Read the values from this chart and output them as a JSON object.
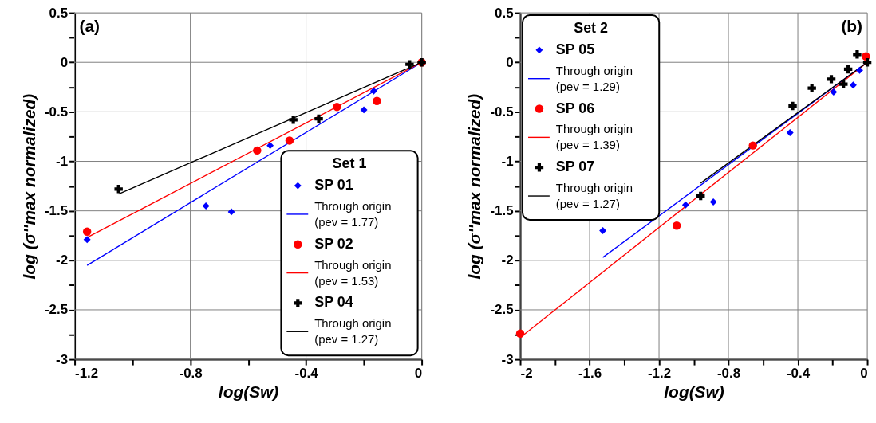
{
  "chart_data": [
    {
      "type": "scatter",
      "xlabel": "log(Sw)",
      "ylabel": "log (σ''max normalized)",
      "legend_title": "Set 1",
      "annotations": [
        "(a)"
      ],
      "grid": true,
      "legend": "bottom right",
      "xlim": [
        -1.2,
        0
      ],
      "xticks": [
        -1.2,
        {
          "value": -1.0,
          "label": null
        },
        -0.8,
        {
          "value": -0.6,
          "label": null
        },
        -0.4,
        {
          "value": -0.2,
          "label": null
        },
        0
      ],
      "ylim": [
        -3,
        0.5
      ],
      "yticks": [
        -3,
        {
          "value": -2.75,
          "label": null
        },
        -2.5,
        {
          "value": -2.25,
          "label": null
        },
        -2,
        {
          "value": -1.75,
          "label": null
        },
        -1.5,
        {
          "value": -1.25,
          "label": null
        },
        -1,
        {
          "value": -0.75,
          "label": null
        },
        -0.5,
        {
          "value": -0.25,
          "label": null
        },
        0,
        {
          "value": 0.25,
          "label": null
        },
        0.5
      ],
      "series": [
        {
          "name": "SP 01",
          "marker": "diamond",
          "color": "#0000ff",
          "x": [
            -1.157,
            -0.746,
            -0.658,
            -0.524,
            -0.2,
            -0.166
          ],
          "values": [
            -1.79,
            -1.45,
            -1.51,
            -0.84,
            -0.48,
            -0.29
          ]
        },
        {
          "name": "Through origin (pev = 1.77)",
          "type": "line",
          "color": "#0000ff",
          "x": [
            -1.157,
            0
          ],
          "values": [
            -2.05,
            0
          ]
        },
        {
          "name": "SP 02",
          "marker": "circle",
          "color": "#ff0000",
          "x": [
            -1.157,
            -0.569,
            -0.457,
            -0.293,
            -0.155,
            0
          ],
          "values": [
            -1.71,
            -0.89,
            -0.79,
            -0.45,
            -0.39,
            0
          ]
        },
        {
          "name": "Through origin (pev = 1.53)",
          "type": "line",
          "color": "#ff0000",
          "x": [
            -1.157,
            0
          ],
          "values": [
            -1.77,
            0
          ]
        },
        {
          "name": "SP 04",
          "marker": "cross",
          "color": "#000000",
          "x": [
            -1.048,
            -0.444,
            -0.356,
            -0.042,
            0
          ],
          "values": [
            -1.28,
            -0.58,
            -0.57,
            -0.02,
            0
          ]
        },
        {
          "name": "Through origin (pev = 1.27)",
          "type": "line",
          "color": "#000000",
          "x": [
            -1.048,
            0
          ],
          "values": [
            -1.33,
            0
          ]
        }
      ]
    },
    {
      "type": "scatter",
      "xlabel": "log(Sw)",
      "ylabel": "log (σ''max normalized)",
      "legend_title": "Set 2",
      "annotations": [
        "(b)"
      ],
      "grid": true,
      "legend": "top left",
      "xlim": [
        -2,
        0
      ],
      "xticks": [
        -2,
        {
          "value": -1.8,
          "label": null
        },
        -1.6,
        {
          "value": -1.4,
          "label": null
        },
        -1.2,
        {
          "value": -1.0,
          "label": null
        },
        -0.8,
        {
          "value": -0.6,
          "label": null
        },
        -0.4,
        {
          "value": -0.2,
          "label": null
        },
        0
      ],
      "ylim": [
        -3,
        0.5
      ],
      "yticks": [
        -3,
        {
          "value": -2.75,
          "label": null
        },
        -2.5,
        {
          "value": -2.25,
          "label": null
        },
        -2,
        {
          "value": -1.75,
          "label": null
        },
        -1.5,
        {
          "value": -1.25,
          "label": null
        },
        -1,
        {
          "value": -0.75,
          "label": null
        },
        -0.5,
        {
          "value": -0.25,
          "label": null
        },
        0,
        {
          "value": 0.25,
          "label": null
        },
        0.5
      ],
      "series": [
        {
          "name": "SP 05",
          "marker": "diamond",
          "color": "#0000ff",
          "x": [
            -1.524,
            -1.047,
            -0.887,
            -0.445,
            -0.194,
            -0.081,
            -0.044
          ],
          "values": [
            -1.7,
            -1.44,
            -1.41,
            -0.71,
            -0.3,
            -0.23,
            -0.08
          ]
        },
        {
          "name": "Through origin (pev = 1.29)",
          "type": "line",
          "color": "#0000ff",
          "x": [
            -1.524,
            0
          ],
          "values": [
            -1.97,
            0
          ]
        },
        {
          "name": "SP 06",
          "marker": "circle",
          "color": "#ff0000",
          "x": [
            -2,
            -1.098,
            -0.659,
            -0.008
          ],
          "values": [
            -2.74,
            -1.65,
            -0.84,
            0.06
          ]
        },
        {
          "name": "Through origin (pev = 1.39)",
          "type": "line",
          "color": "#ff0000",
          "x": [
            -2,
            0
          ],
          "values": [
            -2.78,
            0
          ]
        },
        {
          "name": "SP 07",
          "marker": "cross",
          "color": "#000000",
          "x": [
            -0.96,
            -0.43,
            -0.319,
            -0.207,
            -0.137,
            -0.11,
            -0.058,
            0
          ],
          "values": [
            -1.35,
            -0.44,
            -0.26,
            -0.17,
            -0.22,
            -0.07,
            0.08,
            0
          ]
        },
        {
          "name": "Through origin (pev = 1.27)",
          "type": "line",
          "color": "#000000",
          "x": [
            -0.96,
            0
          ],
          "values": [
            -1.22,
            0
          ]
        }
      ]
    }
  ]
}
